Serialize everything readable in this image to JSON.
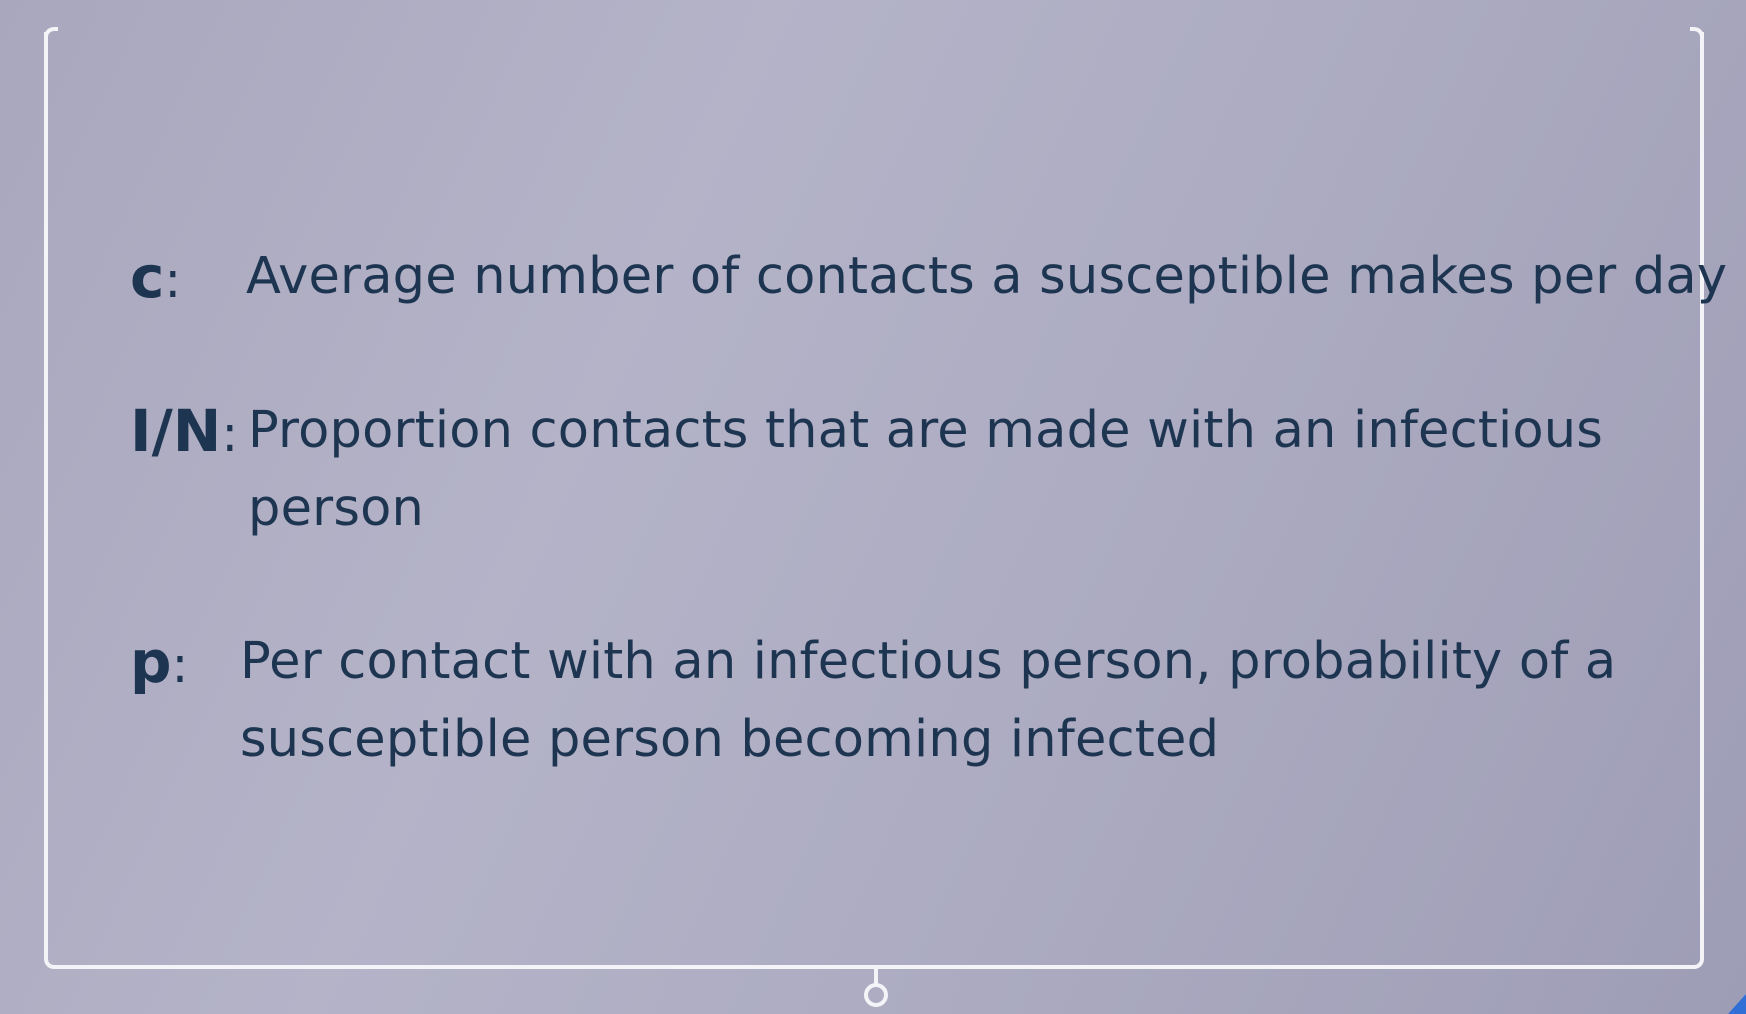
{
  "definitions": [
    {
      "symbol": "c",
      "colon": ":",
      "lines": [
        "Average number of contacts a susceptible makes per day"
      ]
    },
    {
      "symbol": "I/N",
      "colon": ":",
      "lines": [
        "Proportion contacts that are made with an infectious",
        "person"
      ]
    },
    {
      "symbol": "p",
      "colon": ":",
      "lines": [
        "Per contact with an infectious person, probability of a",
        "susceptible person becoming infected"
      ]
    }
  ],
  "colors": {
    "text": "#1d3550",
    "frame": "#f4f4f8",
    "background": "#aeadc3",
    "corner_accent": "#2f6fd6"
  }
}
